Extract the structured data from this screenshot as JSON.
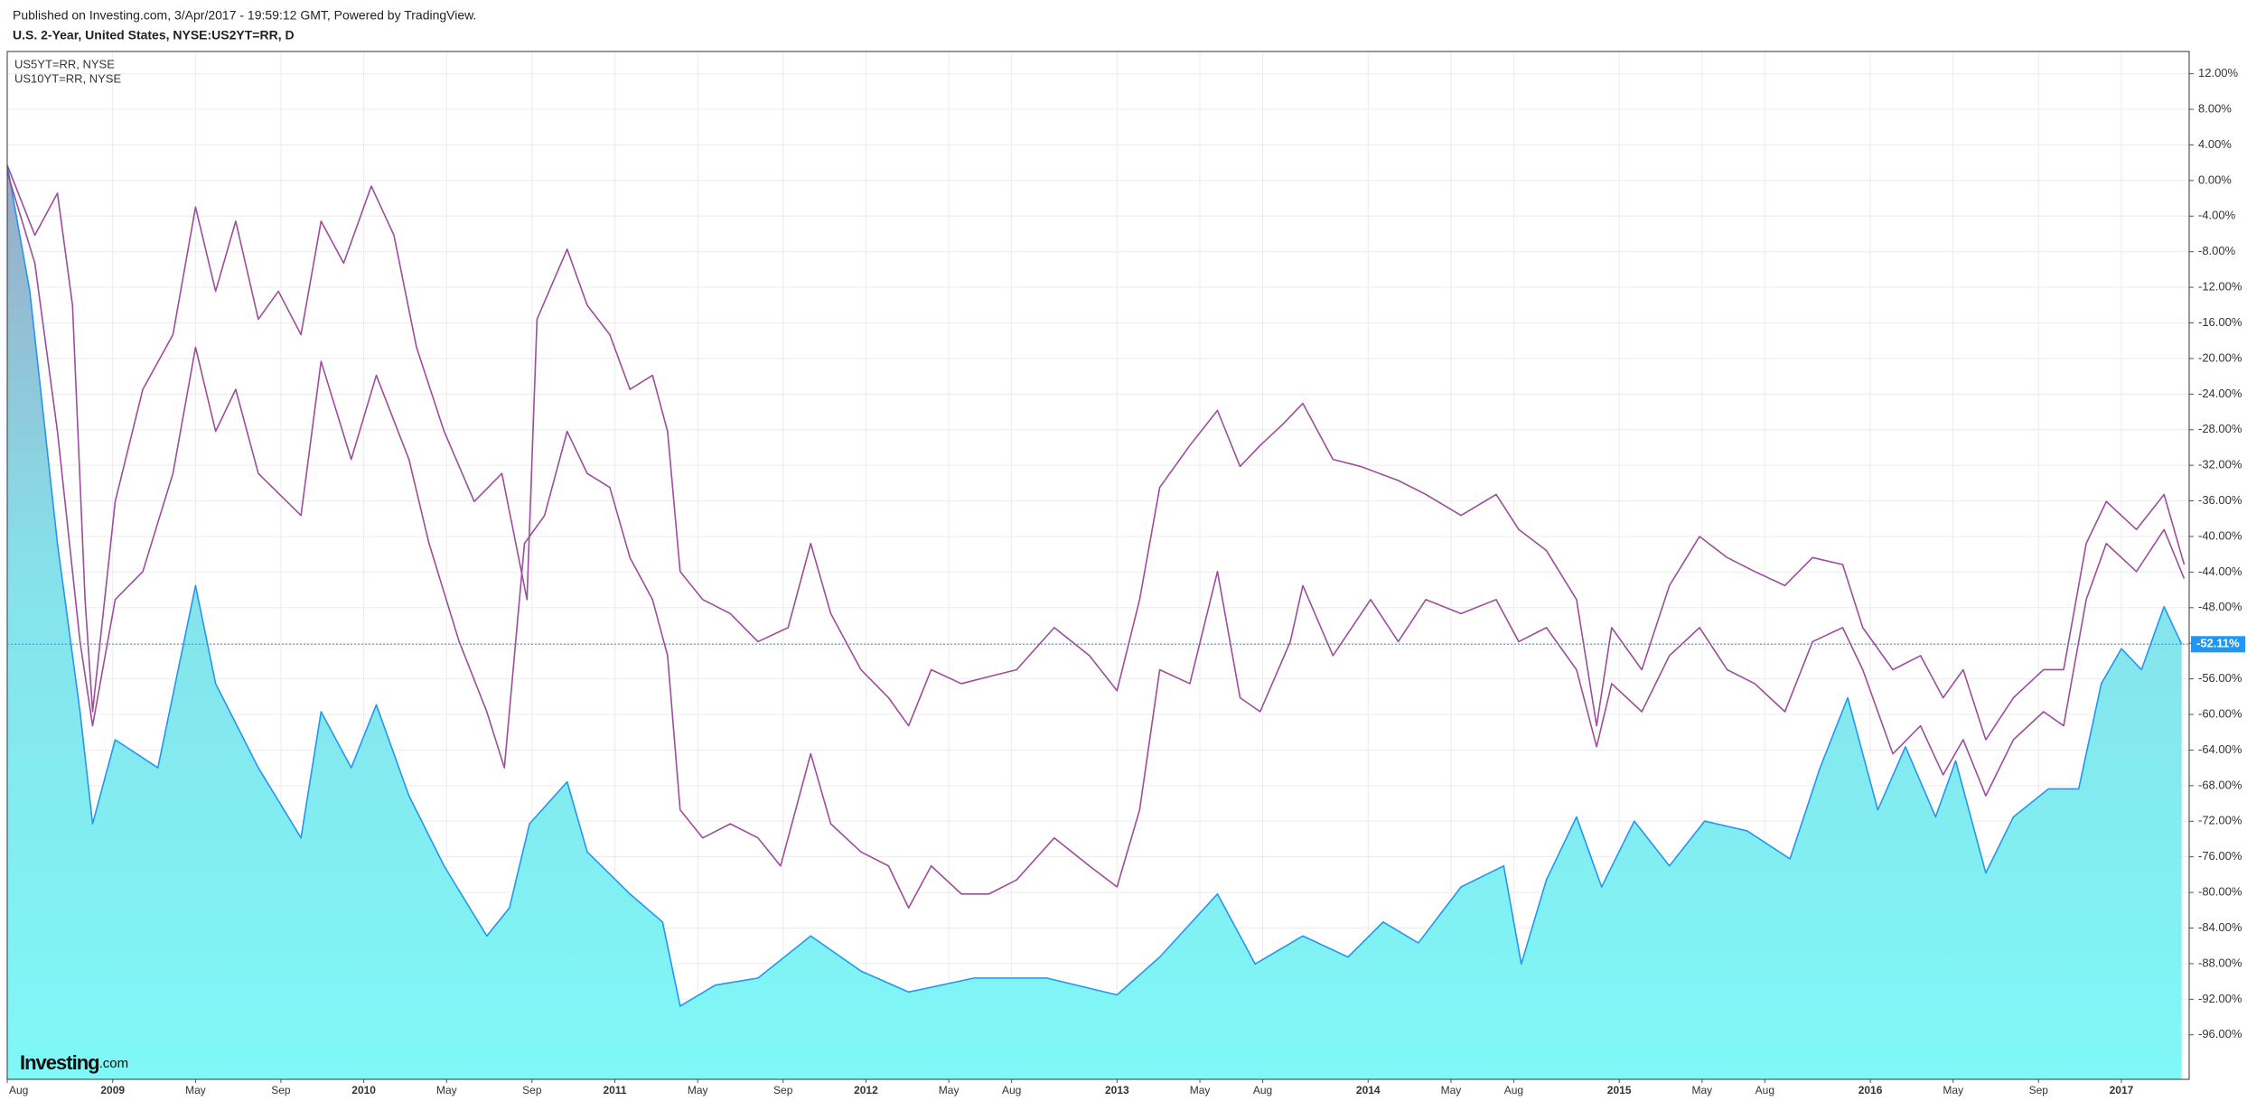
{
  "chart_data": {
    "type": "line",
    "source_note": "Published on Investing.com, 3/Apr/2017 - 19:59:12 GMT, Powered by TradingView.",
    "title": "U.S. 2-Year, United States, NYSE:US2YT=RR, D",
    "logo": [
      "Investing",
      ".com"
    ],
    "xlim": [
      2008.58,
      2017.27
    ],
    "xticks": [
      {
        "value": 2008.58,
        "label": "Aug"
      },
      2009,
      {
        "value": 2009.33,
        "label": "May"
      },
      {
        "value": 2009.67,
        "label": "Sep"
      },
      2010,
      {
        "value": 2010.33,
        "label": "May"
      },
      {
        "value": 2010.67,
        "label": "Sep"
      },
      2011,
      {
        "value": 2011.33,
        "label": "May"
      },
      {
        "value": 2011.67,
        "label": "Sep"
      },
      2012,
      {
        "value": 2012.33,
        "label": "May"
      },
      {
        "value": 2012.58,
        "label": "Aug"
      },
      2013,
      {
        "value": 2013.33,
        "label": "May"
      },
      {
        "value": 2013.58,
        "label": "Aug"
      },
      2014,
      {
        "value": 2014.33,
        "label": "May"
      },
      {
        "value": 2014.58,
        "label": "Aug"
      },
      2015,
      {
        "value": 2015.33,
        "label": "May"
      },
      {
        "value": 2015.58,
        "label": "Aug"
      },
      2016,
      {
        "value": 2016.33,
        "label": "May"
      },
      {
        "value": 2016.67,
        "label": "Sep"
      },
      2017
    ],
    "ylim": [
      14.5,
      -101
    ],
    "yticks": [
      {
        "value": 12,
        "label": "12.00%"
      },
      {
        "value": 8,
        "label": "8.00%"
      },
      {
        "value": 4,
        "label": "4.00%"
      },
      {
        "value": 0,
        "label": "0.00%"
      },
      {
        "value": -4,
        "label": "-4.00%"
      },
      {
        "value": -8,
        "label": "-8.00%"
      },
      {
        "value": -12,
        "label": "-12.00%"
      },
      {
        "value": -16,
        "label": "-16.00%"
      },
      {
        "value": -20,
        "label": "-20.00%"
      },
      {
        "value": -24,
        "label": "-24.00%"
      },
      {
        "value": -28,
        "label": "-28.00%"
      },
      {
        "value": -32,
        "label": "-32.00%"
      },
      {
        "value": -36,
        "label": "-36.00%"
      },
      {
        "value": -40,
        "label": "-40.00%"
      },
      {
        "value": -44,
        "label": "-44.00%"
      },
      {
        "value": -48,
        "label": "-48.00%"
      },
      {
        "value": -52,
        "label": "-52.00%"
      },
      {
        "value": -56,
        "label": "-56.00%"
      },
      {
        "value": -60,
        "label": "-60.00%"
      },
      {
        "value": -64,
        "label": "-64.00%"
      },
      {
        "value": -68,
        "label": "-68.00%"
      },
      {
        "value": -72,
        "label": "-72.00%"
      },
      {
        "value": -76,
        "label": "-76.00%"
      },
      {
        "value": -80,
        "label": "-80.00%"
      },
      {
        "value": -84,
        "label": "-84.00%"
      },
      {
        "value": -88,
        "label": "-88.00%"
      },
      {
        "value": -92,
        "label": "-92.00%"
      },
      {
        "value": -96,
        "label": "-96.00%"
      }
    ],
    "grid": true,
    "legend": "top-left",
    "series": [
      {
        "color": "#2196f3",
        "fill": true,
        "x": [
          2008.58,
          2008.67,
          2008.78,
          2008.87,
          2008.92,
          2009.01,
          2009.18,
          2009.33,
          2009.41,
          2009.58,
          2009.75,
          2009.83,
          2009.95,
          2010.05,
          2010.18,
          2010.32,
          2010.49,
          2010.58,
          2010.66,
          2010.81,
          2010.89,
          2011.06,
          2011.19,
          2011.26,
          2011.4,
          2011.57,
          2011.78,
          2011.98,
          2012.17,
          2012.43,
          2012.72,
          2013.0,
          2013.17,
          2013.4,
          2013.55,
          2013.74,
          2013.92,
          2014.06,
          2014.2,
          2014.37,
          2014.54,
          2014.61,
          2014.71,
          2014.83,
          2014.93,
          2015.06,
          2015.2,
          2015.34,
          2015.51,
          2015.68,
          2015.8,
          2015.91,
          2016.03,
          2016.14,
          2016.26,
          2016.34,
          2016.46,
          2016.57,
          2016.71,
          2016.83,
          2016.92,
          2017.0,
          2017.08,
          2017.17,
          2017.24
        ],
        "values": [
          1.73,
          -12.44,
          -40.79,
          -59.69,
          -72.29,
          -62.84,
          -65.99,
          -45.52,
          -56.54,
          -65.99,
          -73.87,
          -59.69,
          -65.99,
          -58.91,
          -69.14,
          -77.02,
          -84.89,
          -81.74,
          -72.29,
          -67.57,
          -75.44,
          -80.17,
          -83.32,
          -92.77,
          -90.41,
          -89.62,
          -84.89,
          -88.83,
          -91.19,
          -89.62,
          -89.62,
          -91.51,
          -87.26,
          -80.17,
          -88.04,
          -84.89,
          -87.26,
          -83.32,
          -85.68,
          -79.38,
          -77.02,
          -88.04,
          -78.59,
          -71.51,
          -79.38,
          -71.98,
          -77.02,
          -71.98,
          -73.08,
          -76.23,
          -65.99,
          -58.12,
          -70.72,
          -63.63,
          -71.51,
          -65.21,
          -77.81,
          -71.51,
          -68.36,
          -68.36,
          -56.54,
          -52.61,
          -54.97,
          -47.88,
          -52.11
        ]
      },
      {
        "name": "US5YT=RR, NYSE",
        "color": "#9c4d9c",
        "x": [
          2008.58,
          2008.69,
          2008.78,
          2008.87,
          2008.92,
          2009.01,
          2009.12,
          2009.24,
          2009.33,
          2009.41,
          2009.49,
          2009.58,
          2009.75,
          2009.83,
          2009.95,
          2010.05,
          2010.18,
          2010.26,
          2010.38,
          2010.49,
          2010.56,
          2010.64,
          2010.72,
          2010.81,
          2010.89,
          2010.98,
          2011.06,
          2011.15,
          2011.21,
          2011.26,
          2011.35,
          2011.46,
          2011.57,
          2011.66,
          2011.78,
          2011.86,
          2011.98,
          2012.09,
          2012.17,
          2012.26,
          2012.38,
          2012.49,
          2012.6,
          2012.75,
          2012.89,
          2013.0,
          2013.09,
          2013.17,
          2013.29,
          2013.4,
          2013.49,
          2013.57,
          2013.69,
          2013.74,
          2013.86,
          2014.01,
          2014.12,
          2014.23,
          2014.37,
          2014.51,
          2014.6,
          2014.71,
          2014.83,
          2014.91,
          2014.97,
          2015.09,
          2015.2,
          2015.32,
          2015.43,
          2015.54,
          2015.66,
          2015.77,
          2015.89,
          2015.97,
          2016.09,
          2016.2,
          2016.29,
          2016.37,
          2016.46,
          2016.57,
          2016.69,
          2016.77,
          2016.86,
          2016.94,
          2017.06,
          2017.17,
          2017.25
        ],
        "values": [
          0.94,
          -9.29,
          -28.19,
          -51.82,
          -61.27,
          -47.09,
          -43.94,
          -32.92,
          -18.74,
          -28.19,
          -23.47,
          -32.92,
          -37.64,
          -20.32,
          -31.34,
          -21.89,
          -31.34,
          -40.79,
          -51.82,
          -59.69,
          -65.99,
          -40.79,
          -37.64,
          -28.19,
          -32.92,
          -34.49,
          -42.37,
          -47.09,
          -53.39,
          -70.72,
          -73.87,
          -72.29,
          -73.87,
          -77.02,
          -64.42,
          -72.29,
          -75.44,
          -77.02,
          -81.74,
          -77.02,
          -80.17,
          -80.17,
          -78.59,
          -73.87,
          -77.02,
          -79.38,
          -70.72,
          -54.97,
          -56.54,
          -43.94,
          -58.12,
          -59.69,
          -51.82,
          -45.52,
          -53.39,
          -47.09,
          -51.82,
          -47.09,
          -48.67,
          -47.09,
          -51.82,
          -50.24,
          -54.97,
          -63.63,
          -56.54,
          -59.69,
          -53.39,
          -50.24,
          -54.97,
          -56.54,
          -59.69,
          -51.82,
          -50.24,
          -54.97,
          -64.42,
          -61.27,
          -66.78,
          -62.84,
          -69.14,
          -62.84,
          -59.69,
          -61.27,
          -47.09,
          -40.79,
          -43.94,
          -39.22,
          -44.73
        ]
      },
      {
        "name": "US10YT=RR, NYSE",
        "color": "#9c4d9c",
        "x": [
          2008.58,
          2008.69,
          2008.78,
          2008.84,
          2008.89,
          2008.92,
          2009.01,
          2009.12,
          2009.24,
          2009.33,
          2009.41,
          2009.49,
          2009.58,
          2009.66,
          2009.75,
          2009.83,
          2009.92,
          2010.03,
          2010.12,
          2010.21,
          2010.32,
          2010.44,
          2010.55,
          2010.65,
          2010.69,
          2010.81,
          2010.89,
          2010.98,
          2011.06,
          2011.15,
          2011.21,
          2011.26,
          2011.35,
          2011.46,
          2011.57,
          2011.69,
          2011.78,
          2011.86,
          2011.98,
          2012.09,
          2012.17,
          2012.26,
          2012.38,
          2012.49,
          2012.6,
          2012.75,
          2012.89,
          2013.0,
          2013.09,
          2013.17,
          2013.29,
          2013.4,
          2013.49,
          2013.57,
          2013.66,
          2013.74,
          2013.86,
          2013.97,
          2014.12,
          2014.23,
          2014.37,
          2014.51,
          2014.6,
          2014.71,
          2014.83,
          2014.91,
          2014.97,
          2015.09,
          2015.2,
          2015.32,
          2015.43,
          2015.54,
          2015.66,
          2015.77,
          2015.89,
          2015.97,
          2016.09,
          2016.2,
          2016.29,
          2016.37,
          2016.46,
          2016.57,
          2016.69,
          2016.77,
          2016.86,
          2016.94,
          2017.06,
          2017.17,
          2017.25
        ],
        "values": [
          1.73,
          -6.14,
          -1.42,
          -14.02,
          -47.09,
          -59.69,
          -36.07,
          -23.47,
          -17.32,
          -2.99,
          -12.44,
          -4.57,
          -15.59,
          -12.44,
          -17.32,
          -4.57,
          -9.29,
          -0.63,
          -6.14,
          -18.74,
          -28.19,
          -36.07,
          -32.92,
          -47.09,
          -15.59,
          -7.72,
          -14.02,
          -17.32,
          -23.47,
          -21.89,
          -28.19,
          -43.94,
          -47.09,
          -48.67,
          -51.82,
          -50.24,
          -40.79,
          -48.67,
          -54.97,
          -58.12,
          -61.27,
          -54.97,
          -56.54,
          -55.75,
          -54.97,
          -50.24,
          -53.39,
          -57.33,
          -47.09,
          -34.49,
          -29.77,
          -25.83,
          -32.13,
          -29.77,
          -27.4,
          -25.04,
          -31.34,
          -32.13,
          -33.71,
          -35.28,
          -37.64,
          -35.28,
          -39.22,
          -41.58,
          -47.09,
          -61.27,
          -50.24,
          -54.97,
          -45.52,
          -40.0,
          -42.37,
          -43.94,
          -45.52,
          -42.37,
          -43.15,
          -50.24,
          -54.97,
          -53.39,
          -58.12,
          -54.97,
          -62.84,
          -58.12,
          -54.97,
          -54.97,
          -40.79,
          -36.07,
          -39.22,
          -35.28,
          -43.15
        ]
      }
    ],
    "annotations": [
      {
        "text": "-52.11%",
        "value": -52.11,
        "series": 0
      }
    ]
  }
}
